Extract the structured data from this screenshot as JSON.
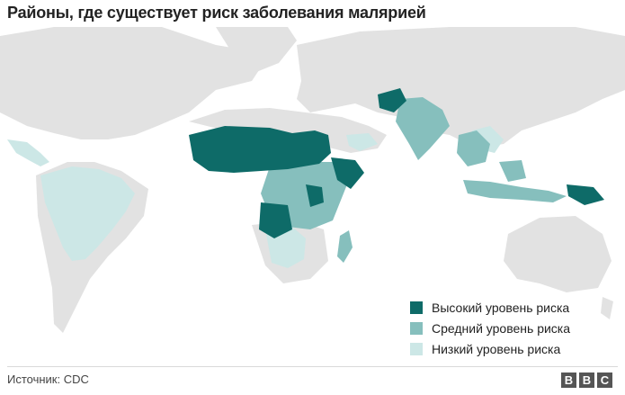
{
  "title": "Районы, где существует риск заболевания малярией",
  "legend": [
    {
      "label": "Высокий уровень риска",
      "color": "#0e6b68"
    },
    {
      "label": "Средний уровень риска",
      "color": "#86bfbd"
    },
    {
      "label": "Низкий уровень риска",
      "color": "#cce7e6"
    }
  ],
  "colors": {
    "land": "#e2e2e2",
    "water": "#ffffff",
    "high": "#0e6b68",
    "medium": "#86bfbd",
    "low": "#cce7e6"
  },
  "source": "Источник: CDC",
  "brand": [
    "B",
    "B",
    "C"
  ]
}
